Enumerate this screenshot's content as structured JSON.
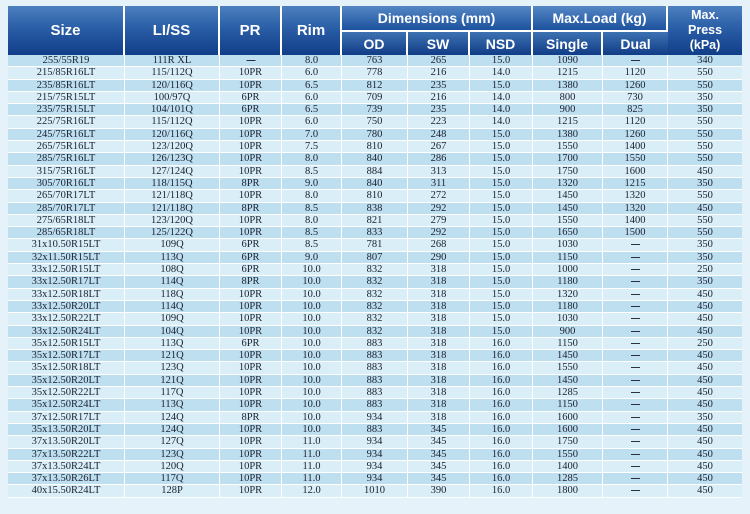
{
  "page": {
    "background": "#e6f2fa"
  },
  "table": {
    "title": "Tire size specification table",
    "colors": {
      "header_gradient_top": "#4c80bf",
      "header_gradient_bottom": "#113d88",
      "row_odd": "#bedff0",
      "row_even": "#daeef8",
      "grid": "#ffffff",
      "body_text": "#1a2030",
      "header_text": "#ffffff"
    },
    "header": {
      "size": "Size",
      "li_ss": "LI/SS",
      "pr": "PR",
      "rim": "Rim",
      "dimensions_group": "Dimensions (mm)",
      "od": "OD",
      "sw": "SW",
      "nsd": "NSD",
      "max_load_group": "Max.Load (kg)",
      "single": "Single",
      "dual": "Dual",
      "max_press": "Max.\nPress\n(kPa)"
    },
    "column_keys": [
      "size",
      "li_ss",
      "pr",
      "rim",
      "od",
      "sw",
      "nsd",
      "single",
      "dual",
      "press"
    ],
    "rows": [
      [
        "255/55R19",
        "111R XL",
        "—",
        "8.0",
        "763",
        "265",
        "15.0",
        "1090",
        "—",
        "340"
      ],
      [
        "215/85R16LT",
        "115/112Q",
        "10PR",
        "6.0",
        "778",
        "216",
        "14.0",
        "1215",
        "1120",
        "550"
      ],
      [
        "235/85R16LT",
        "120/116Q",
        "10PR",
        "6.5",
        "812",
        "235",
        "15.0",
        "1380",
        "1260",
        "550"
      ],
      [
        "215/75R15LT",
        "100/97Q",
        "6PR",
        "6.0",
        "709",
        "216",
        "14.0",
        "800",
        "730",
        "350"
      ],
      [
        "235/75R15LT",
        "104/101Q",
        "6PR",
        "6.5",
        "739",
        "235",
        "14.0",
        "900",
        "825",
        "350"
      ],
      [
        "225/75R16LT",
        "115/112Q",
        "10PR",
        "6.0",
        "750",
        "223",
        "14.0",
        "1215",
        "1120",
        "550"
      ],
      [
        "245/75R16LT",
        "120/116Q",
        "10PR",
        "7.0",
        "780",
        "248",
        "15.0",
        "1380",
        "1260",
        "550"
      ],
      [
        "265/75R16LT",
        "123/120Q",
        "10PR",
        "7.5",
        "810",
        "267",
        "15.0",
        "1550",
        "1400",
        "550"
      ],
      [
        "285/75R16LT",
        "126/123Q",
        "10PR",
        "8.0",
        "840",
        "286",
        "15.0",
        "1700",
        "1550",
        "550"
      ],
      [
        "315/75R16LT",
        "127/124Q",
        "10PR",
        "8.5",
        "884",
        "313",
        "15.0",
        "1750",
        "1600",
        "450"
      ],
      [
        "305/70R16LT",
        "118/115Q",
        "8PR",
        "9.0",
        "840",
        "311",
        "15.0",
        "1320",
        "1215",
        "350"
      ],
      [
        "265/70R17LT",
        "121/118Q",
        "10PR",
        "8.0",
        "810",
        "272",
        "15.0",
        "1450",
        "1320",
        "550"
      ],
      [
        "285/70R17LT",
        "121/118Q",
        "8PR",
        "8.5",
        "838",
        "292",
        "15.0",
        "1450",
        "1320",
        "450"
      ],
      [
        "275/65R18LT",
        "123/120Q",
        "10PR",
        "8.0",
        "821",
        "279",
        "15.0",
        "1550",
        "1400",
        "550"
      ],
      [
        "285/65R18LT",
        "125/122Q",
        "10PR",
        "8.5",
        "833",
        "292",
        "15.0",
        "1650",
        "1500",
        "550"
      ],
      [
        "31x10.50R15LT",
        "109Q",
        "6PR",
        "8.5",
        "781",
        "268",
        "15.0",
        "1030",
        "—",
        "350"
      ],
      [
        "32x11.50R15LT",
        "113Q",
        "6PR",
        "9.0",
        "807",
        "290",
        "15.0",
        "1150",
        "—",
        "350"
      ],
      [
        "33x12.50R15LT",
        "108Q",
        "6PR",
        "10.0",
        "832",
        "318",
        "15.0",
        "1000",
        "—",
        "250"
      ],
      [
        "33x12.50R17LT",
        "114Q",
        "8PR",
        "10.0",
        "832",
        "318",
        "15.0",
        "1180",
        "—",
        "350"
      ],
      [
        "33x12.50R18LT",
        "118Q",
        "10PR",
        "10.0",
        "832",
        "318",
        "15.0",
        "1320",
        "—",
        "450"
      ],
      [
        "33x12.50R20LT",
        "114Q",
        "10PR",
        "10.0",
        "832",
        "318",
        "15.0",
        "1180",
        "—",
        "450"
      ],
      [
        "33x12.50R22LT",
        "109Q",
        "10PR",
        "10.0",
        "832",
        "318",
        "15.0",
        "1030",
        "—",
        "450"
      ],
      [
        "33x12.50R24LT",
        "104Q",
        "10PR",
        "10.0",
        "832",
        "318",
        "15.0",
        "900",
        "—",
        "450"
      ],
      [
        "35x12.50R15LT",
        "113Q",
        "6PR",
        "10.0",
        "883",
        "318",
        "16.0",
        "1150",
        "—",
        "250"
      ],
      [
        "35x12.50R17LT",
        "121Q",
        "10PR",
        "10.0",
        "883",
        "318",
        "16.0",
        "1450",
        "—",
        "450"
      ],
      [
        "35x12.50R18LT",
        "123Q",
        "10PR",
        "10.0",
        "883",
        "318",
        "16.0",
        "1550",
        "—",
        "450"
      ],
      [
        "35x12.50R20LT",
        "121Q",
        "10PR",
        "10.0",
        "883",
        "318",
        "16.0",
        "1450",
        "—",
        "450"
      ],
      [
        "35x12.50R22LT",
        "117Q",
        "10PR",
        "10.0",
        "883",
        "318",
        "16.0",
        "1285",
        "—",
        "450"
      ],
      [
        "35x12.50R24LT",
        "113Q",
        "10PR",
        "10.0",
        "883",
        "318",
        "16.0",
        "1150",
        "—",
        "450"
      ],
      [
        "37x12.50R17LT",
        "124Q",
        "8PR",
        "10.0",
        "934",
        "318",
        "16.0",
        "1600",
        "—",
        "350"
      ],
      [
        "35x13.50R20LT",
        "124Q",
        "10PR",
        "10.0",
        "883",
        "345",
        "16.0",
        "1600",
        "—",
        "450"
      ],
      [
        "37x13.50R20LT",
        "127Q",
        "10PR",
        "11.0",
        "934",
        "345",
        "16.0",
        "1750",
        "—",
        "450"
      ],
      [
        "37x13.50R22LT",
        "123Q",
        "10PR",
        "11.0",
        "934",
        "345",
        "16.0",
        "1550",
        "—",
        "450"
      ],
      [
        "37x13.50R24LT",
        "120Q",
        "10PR",
        "11.0",
        "934",
        "345",
        "16.0",
        "1400",
        "—",
        "450"
      ],
      [
        "37x13.50R26LT",
        "117Q",
        "10PR",
        "11.0",
        "934",
        "345",
        "16.0",
        "1285",
        "—",
        "450"
      ],
      [
        "40x15.50R24LT",
        "128P",
        "10PR",
        "12.0",
        "1010",
        "390",
        "16.0",
        "1800",
        "—",
        "450"
      ]
    ]
  }
}
